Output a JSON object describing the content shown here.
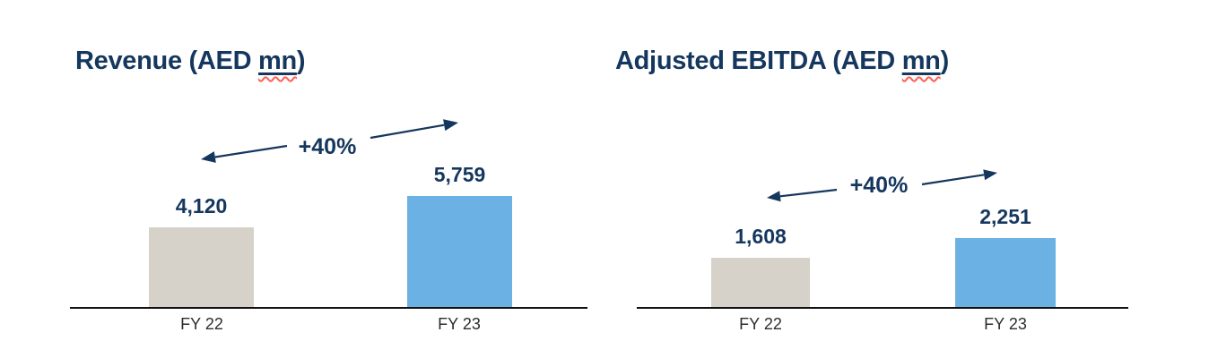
{
  "page": {
    "background": "#ffffff"
  },
  "colors": {
    "navy": "#15375e",
    "bar_gray": "#d6d2ca",
    "bar_blue": "#6cb1e4",
    "axis": "#111111",
    "label_gray": "#2d2d2d",
    "squiggle": "#ff5f52"
  },
  "chart_data": [
    {
      "type": "bar",
      "title": "Revenue (AED mn)",
      "title_parts": {
        "prefix": "Revenue (AED ",
        "underlined": "mn",
        "suffix": ")"
      },
      "categories": [
        "FY 22",
        "FY 23"
      ],
      "values": [
        4120,
        5759
      ],
      "value_labels": [
        "4,120",
        "5,759"
      ],
      "annotation": "+40%",
      "bar_colors": [
        "#d6d2ca",
        "#6cb1e4"
      ],
      "xlabel": "",
      "ylabel": "",
      "ylim": [
        0,
        6200
      ],
      "grid": false,
      "legend": "none"
    },
    {
      "type": "bar",
      "title": "Adjusted EBITDA (AED mn)",
      "title_parts": {
        "prefix": "Adjusted EBITDA (AED ",
        "underlined": "mn",
        "suffix": ")"
      },
      "categories": [
        "FY 22",
        "FY 23"
      ],
      "values": [
        1608,
        2251
      ],
      "value_labels": [
        "1,608",
        "2,251"
      ],
      "annotation": "+40%",
      "bar_colors": [
        "#d6d2ca",
        "#6cb1e4"
      ],
      "xlabel": "",
      "ylabel": "",
      "ylim": [
        0,
        2500
      ],
      "grid": false,
      "legend": "none"
    }
  ]
}
